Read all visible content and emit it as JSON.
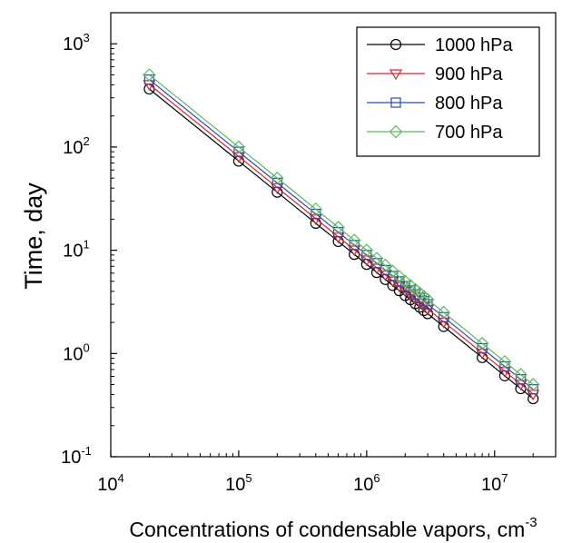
{
  "chart_data": {
    "type": "line",
    "xlabel": "Concentrations of condensable vapors, cm",
    "xlabel_sup": "-3",
    "ylabel": "Time, day",
    "x_scale": "log",
    "y_scale": "log",
    "xlim": [
      10000,
      30000000
    ],
    "ylim": [
      0.1,
      2000
    ],
    "grid": false,
    "legend_position": "top-right",
    "x_ticks": [
      {
        "value": 10000,
        "base": "10",
        "exp": "4"
      },
      {
        "value": 100000,
        "base": "10",
        "exp": "5"
      },
      {
        "value": 1000000,
        "base": "10",
        "exp": "6"
      },
      {
        "value": 10000000,
        "base": "10",
        "exp": "7"
      }
    ],
    "y_ticks": [
      {
        "value": 0.1,
        "base": "10",
        "exp": "-1"
      },
      {
        "value": 1,
        "base": "10",
        "exp": "0"
      },
      {
        "value": 10,
        "base": "10",
        "exp": "1"
      },
      {
        "value": 100,
        "base": "10",
        "exp": "2"
      },
      {
        "value": 1000,
        "base": "10",
        "exp": "3"
      }
    ],
    "x": [
      20000,
      100000,
      200000,
      400000,
      600000,
      800000,
      1000000,
      1200000,
      1400000,
      1600000,
      1800000,
      2000000,
      2200000,
      2400000,
      2600000,
      2800000,
      3000000,
      4000000,
      8000000,
      12000000,
      16000000,
      20000000
    ],
    "series": [
      {
        "name": "1000 hPa",
        "color": "#000000",
        "marker": "circle",
        "k": 7300000
      },
      {
        "name": "900 hPa",
        "color": "#e0202a",
        "marker": "triangle-down",
        "k": 8100000
      },
      {
        "name": "800 hPa",
        "color": "#2a4fa8",
        "marker": "square",
        "k": 9000000
      },
      {
        "name": "700 hPa",
        "color": "#5cb85c",
        "marker": "diamond",
        "k": 10000000
      }
    ]
  }
}
